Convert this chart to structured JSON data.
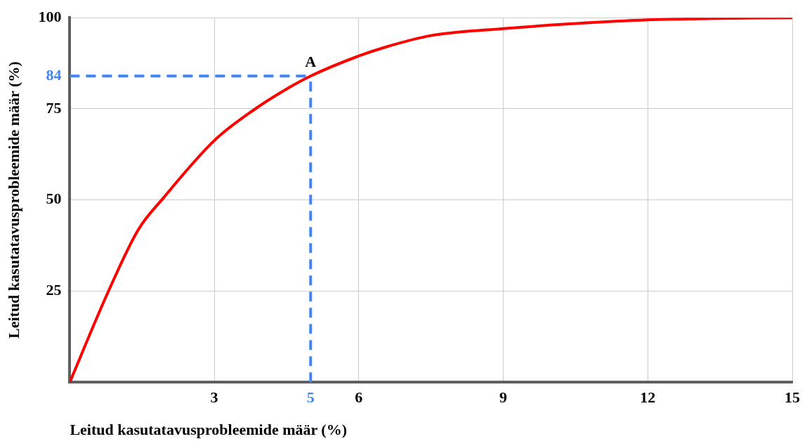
{
  "chart_data": {
    "type": "line",
    "xlabel": "Leitud kasutatavusprobleemide määr (%)",
    "ylabel": "Leitud kasutatavusprobleemide määr (%)",
    "series": [
      {
        "color": "#ff0000",
        "x": [
          0,
          0.79,
          1.42,
          1.94,
          3,
          3.82,
          4.55,
          5,
          6,
          6.57,
          7.5,
          9,
          10.5,
          12,
          13.5,
          15
        ],
        "values": [
          0,
          24.6,
          41.8,
          50.5,
          66.3,
          74.7,
          80.8,
          84,
          89.5,
          92,
          95.1,
          97,
          98.4,
          99.4,
          99.8,
          100
        ]
      }
    ],
    "xlim": [
      0,
      15
    ],
    "ylim": [
      0,
      100
    ],
    "xticks": [
      3,
      6,
      9,
      12,
      15
    ],
    "yticks": [
      25,
      50,
      75,
      100
    ],
    "grid": true,
    "legend": false,
    "marker": "none",
    "line_style": "solid",
    "ref_lines": [
      {
        "axis": "x",
        "value": 5,
        "label": "5",
        "color": "#4285f4",
        "line_style": "dashed"
      },
      {
        "axis": "y",
        "value": 84,
        "label": "84",
        "color": "#4285f4",
        "line_style": "dashed"
      }
    ],
    "annotations": [
      {
        "text": "A",
        "x": 5,
        "y": 84
      }
    ]
  }
}
